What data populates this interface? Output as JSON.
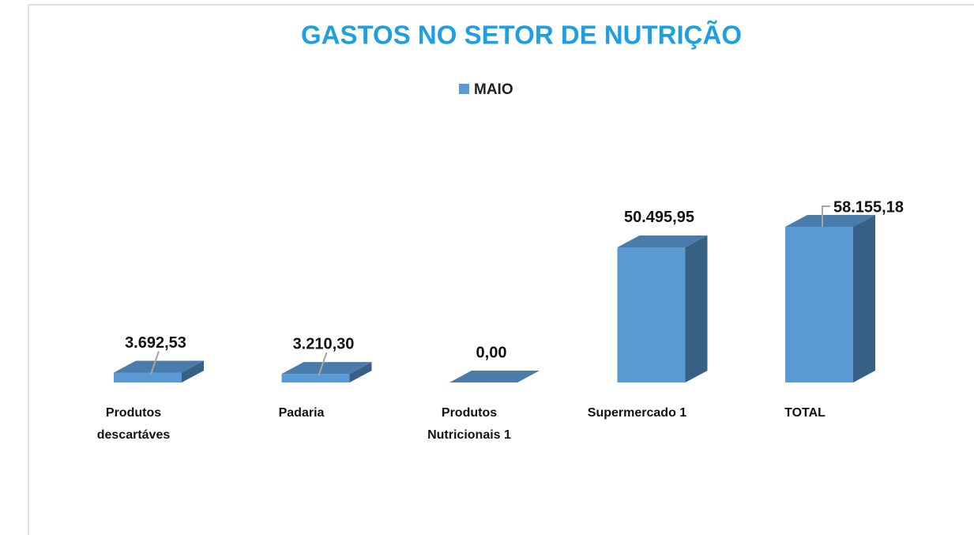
{
  "chart_data": {
    "type": "bar3d",
    "title": "GASTOS NO SETOR DE NUTRIÇÃO",
    "categories": [
      "Produtos\ndescartáves",
      "Padaria",
      "Produtos\nNutricionais 1",
      "Supermercado 1",
      "TOTAL"
    ],
    "series": [
      {
        "name": "MAIO",
        "color": "#5b9bd5",
        "values": [
          3692.53,
          3210.3,
          0,
          50495.95,
          58155.18
        ],
        "value_labels": [
          "3.692,53",
          "3.210,30",
          "0,00",
          "50.495,95",
          "58.155,18"
        ]
      }
    ],
    "legend": "top"
  }
}
